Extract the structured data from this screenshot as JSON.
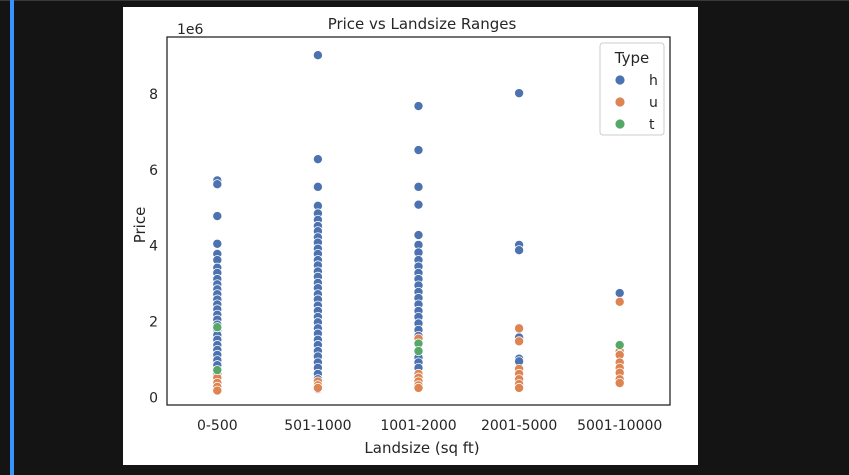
{
  "chart_data": {
    "type": "scatter",
    "title": "Price vs Landsize Ranges",
    "xlabel": "Landsize (sq ft)",
    "ylabel": "Price",
    "offset_label": "1e6",
    "categories": [
      "0-500",
      "501-1000",
      "1001-2000",
      "2001-5000",
      "5001-10000"
    ],
    "y_ticks": [
      0,
      2,
      4,
      6,
      8
    ],
    "ylim": [
      -0.2,
      9.5
    ],
    "legend": {
      "title": "Type",
      "placement": "top-right"
    },
    "series": [
      {
        "name": "h",
        "color": "#4c72b0",
        "points": [
          {
            "x": "0-500",
            "y": 5.72
          },
          {
            "x": "0-500",
            "y": 5.62
          },
          {
            "x": "0-500",
            "y": 4.78
          },
          {
            "x": "0-500",
            "y": 4.05
          },
          {
            "x": "0-500",
            "y": 3.78
          },
          {
            "x": "0-500",
            "y": 3.62
          },
          {
            "x": "0-500",
            "y": 3.42
          },
          {
            "x": "0-500",
            "y": 3.28
          },
          {
            "x": "0-500",
            "y": 3.12
          },
          {
            "x": "0-500",
            "y": 2.98
          },
          {
            "x": "0-500",
            "y": 2.85
          },
          {
            "x": "0-500",
            "y": 2.72
          },
          {
            "x": "0-500",
            "y": 2.58
          },
          {
            "x": "0-500",
            "y": 2.45
          },
          {
            "x": "0-500",
            "y": 2.32
          },
          {
            "x": "0-500",
            "y": 2.18
          },
          {
            "x": "0-500",
            "y": 2.05
          },
          {
            "x": "0-500",
            "y": 1.92
          },
          {
            "x": "0-500",
            "y": 1.78
          },
          {
            "x": "0-500",
            "y": 1.65
          },
          {
            "x": "0-500",
            "y": 1.52
          },
          {
            "x": "0-500",
            "y": 1.38
          },
          {
            "x": "0-500",
            "y": 1.25
          },
          {
            "x": "0-500",
            "y": 1.12
          },
          {
            "x": "0-500",
            "y": 0.98
          },
          {
            "x": "0-500",
            "y": 0.85
          },
          {
            "x": "0-500",
            "y": 0.62
          },
          {
            "x": "0-500",
            "y": 0.48
          },
          {
            "x": "501-1000",
            "y": 9.02
          },
          {
            "x": "501-1000",
            "y": 6.28
          },
          {
            "x": "501-1000",
            "y": 5.55
          },
          {
            "x": "501-1000",
            "y": 5.05
          },
          {
            "x": "501-1000",
            "y": 4.85
          },
          {
            "x": "501-1000",
            "y": 4.68
          },
          {
            "x": "501-1000",
            "y": 4.52
          },
          {
            "x": "501-1000",
            "y": 4.38
          },
          {
            "x": "501-1000",
            "y": 4.22
          },
          {
            "x": "501-1000",
            "y": 4.08
          },
          {
            "x": "501-1000",
            "y": 3.92
          },
          {
            "x": "501-1000",
            "y": 3.78
          },
          {
            "x": "501-1000",
            "y": 3.62
          },
          {
            "x": "501-1000",
            "y": 3.48
          },
          {
            "x": "501-1000",
            "y": 3.32
          },
          {
            "x": "501-1000",
            "y": 3.18
          },
          {
            "x": "501-1000",
            "y": 3.02
          },
          {
            "x": "501-1000",
            "y": 2.88
          },
          {
            "x": "501-1000",
            "y": 2.72
          },
          {
            "x": "501-1000",
            "y": 2.58
          },
          {
            "x": "501-1000",
            "y": 2.42
          },
          {
            "x": "501-1000",
            "y": 2.28
          },
          {
            "x": "501-1000",
            "y": 2.12
          },
          {
            "x": "501-1000",
            "y": 1.98
          },
          {
            "x": "501-1000",
            "y": 1.82
          },
          {
            "x": "501-1000",
            "y": 1.68
          },
          {
            "x": "501-1000",
            "y": 1.52
          },
          {
            "x": "501-1000",
            "y": 1.38
          },
          {
            "x": "501-1000",
            "y": 1.22
          },
          {
            "x": "501-1000",
            "y": 1.08
          },
          {
            "x": "501-1000",
            "y": 0.92
          },
          {
            "x": "501-1000",
            "y": 0.78
          },
          {
            "x": "501-1000",
            "y": 0.62
          },
          {
            "x": "501-1000",
            "y": 0.48
          },
          {
            "x": "501-1000",
            "y": 0.35
          },
          {
            "x": "501-1000",
            "y": 0.22
          },
          {
            "x": "1001-2000",
            "y": 7.68
          },
          {
            "x": "1001-2000",
            "y": 6.52
          },
          {
            "x": "1001-2000",
            "y": 5.55
          },
          {
            "x": "1001-2000",
            "y": 5.08
          },
          {
            "x": "1001-2000",
            "y": 4.28
          },
          {
            "x": "1001-2000",
            "y": 4.02
          },
          {
            "x": "1001-2000",
            "y": 3.82
          },
          {
            "x": "1001-2000",
            "y": 3.62
          },
          {
            "x": "1001-2000",
            "y": 3.45
          },
          {
            "x": "1001-2000",
            "y": 3.28
          },
          {
            "x": "1001-2000",
            "y": 3.12
          },
          {
            "x": "1001-2000",
            "y": 2.95
          },
          {
            "x": "1001-2000",
            "y": 2.78
          },
          {
            "x": "1001-2000",
            "y": 2.62
          },
          {
            "x": "1001-2000",
            "y": 2.45
          },
          {
            "x": "1001-2000",
            "y": 2.28
          },
          {
            "x": "1001-2000",
            "y": 2.12
          },
          {
            "x": "1001-2000",
            "y": 1.95
          },
          {
            "x": "1001-2000",
            "y": 1.78
          },
          {
            "x": "1001-2000",
            "y": 1.62
          },
          {
            "x": "1001-2000",
            "y": 1.45
          },
          {
            "x": "1001-2000",
            "y": 1.05
          },
          {
            "x": "1001-2000",
            "y": 0.92
          },
          {
            "x": "1001-2000",
            "y": 0.78
          },
          {
            "x": "2001-5000",
            "y": 8.02
          },
          {
            "x": "2001-5000",
            "y": 4.02
          },
          {
            "x": "2001-5000",
            "y": 3.88
          },
          {
            "x": "2001-5000",
            "y": 1.58
          },
          {
            "x": "2001-5000",
            "y": 1.02
          },
          {
            "x": "2001-5000",
            "y": 0.95
          },
          {
            "x": "5001-10000",
            "y": 2.75
          }
        ]
      },
      {
        "name": "u",
        "color": "#dd8452",
        "points": [
          {
            "x": "0-500",
            "y": 0.52
          },
          {
            "x": "0-500",
            "y": 0.38
          },
          {
            "x": "0-500",
            "y": 0.28
          },
          {
            "x": "0-500",
            "y": 0.18
          },
          {
            "x": "501-1000",
            "y": 0.42
          },
          {
            "x": "501-1000",
            "y": 0.32
          },
          {
            "x": "501-1000",
            "y": 0.25
          },
          {
            "x": "1001-2000",
            "y": 1.55
          },
          {
            "x": "1001-2000",
            "y": 0.62
          },
          {
            "x": "1001-2000",
            "y": 0.52
          },
          {
            "x": "1001-2000",
            "y": 0.42
          },
          {
            "x": "1001-2000",
            "y": 0.32
          },
          {
            "x": "1001-2000",
            "y": 0.25
          },
          {
            "x": "2001-5000",
            "y": 1.82
          },
          {
            "x": "2001-5000",
            "y": 1.48
          },
          {
            "x": "2001-5000",
            "y": 0.75
          },
          {
            "x": "2001-5000",
            "y": 0.62
          },
          {
            "x": "2001-5000",
            "y": 0.48
          },
          {
            "x": "2001-5000",
            "y": 0.35
          },
          {
            "x": "2001-5000",
            "y": 0.25
          },
          {
            "x": "5001-10000",
            "y": 2.52
          },
          {
            "x": "5001-10000",
            "y": 1.22
          },
          {
            "x": "5001-10000",
            "y": 1.12
          },
          {
            "x": "5001-10000",
            "y": 0.92
          },
          {
            "x": "5001-10000",
            "y": 0.78
          },
          {
            "x": "5001-10000",
            "y": 0.65
          },
          {
            "x": "5001-10000",
            "y": 0.48
          },
          {
            "x": "5001-10000",
            "y": 0.38
          }
        ]
      },
      {
        "name": "t",
        "color": "#55a868",
        "points": [
          {
            "x": "0-500",
            "y": 1.85
          },
          {
            "x": "0-500",
            "y": 0.72
          },
          {
            "x": "1001-2000",
            "y": 1.42
          },
          {
            "x": "1001-2000",
            "y": 1.22
          },
          {
            "x": "5001-10000",
            "y": 1.38
          }
        ]
      }
    ]
  }
}
